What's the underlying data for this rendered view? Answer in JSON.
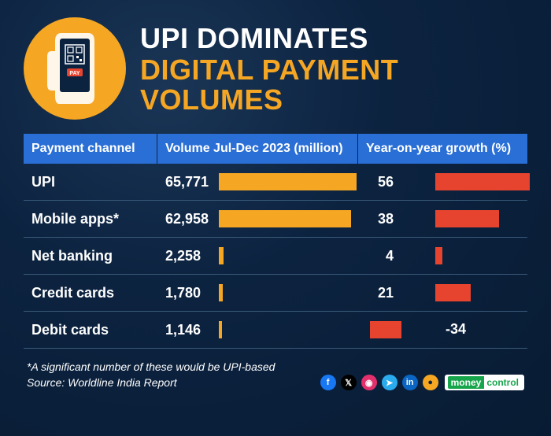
{
  "title": {
    "line1": "UPI DOMINATES",
    "line2a": "DIGITAL PAYMENT",
    "line2b": "VOLUMES"
  },
  "colors": {
    "accent": "#f5a623",
    "header_bg": "#2a6fd6",
    "volume_bar": "#f5a623",
    "growth_bar": "#e7442f",
    "bg_dark": "#081b33"
  },
  "table": {
    "columns": [
      "Payment channel",
      "Volume Jul-Dec 2023 (million)",
      "Year-on-year growth (%)"
    ],
    "volume_max": 65771,
    "growth_max": 56,
    "rows": [
      {
        "channel": "UPI",
        "volume": 65771,
        "volume_label": "65,771",
        "growth": 56,
        "growth_label": "56"
      },
      {
        "channel": "Mobile apps*",
        "volume": 62958,
        "volume_label": "62,958",
        "growth": 38,
        "growth_label": "38"
      },
      {
        "channel": "Net banking",
        "volume": 2258,
        "volume_label": "2,258",
        "growth": 4,
        "growth_label": "4"
      },
      {
        "channel": "Credit cards",
        "volume": 1780,
        "volume_label": "1,780",
        "growth": 21,
        "growth_label": "21"
      },
      {
        "channel": "Debit cards",
        "volume": 1146,
        "volume_label": "1,146",
        "growth": -34,
        "growth_label": "-34"
      }
    ]
  },
  "footnote": {
    "line1": "*A significant number of these would be UPI-based",
    "line2": "Source: Worldline India Report"
  },
  "socials": [
    {
      "name": "facebook",
      "bg": "#1877f2",
      "glyph": "f",
      "fg": "#fff"
    },
    {
      "name": "x-twitter",
      "bg": "#000",
      "glyph": "𝕏",
      "fg": "#fff"
    },
    {
      "name": "instagram",
      "bg": "#e1306c",
      "glyph": "◉",
      "fg": "#fff"
    },
    {
      "name": "telegram",
      "bg": "#2aabee",
      "glyph": "➤",
      "fg": "#fff"
    },
    {
      "name": "linkedin",
      "bg": "#0a66c2",
      "glyph": "in",
      "fg": "#fff"
    },
    {
      "name": "app",
      "bg": "#f5a623",
      "glyph": "●",
      "fg": "#0c2340"
    }
  ],
  "logo": {
    "part1": "money",
    "part2": "control"
  }
}
